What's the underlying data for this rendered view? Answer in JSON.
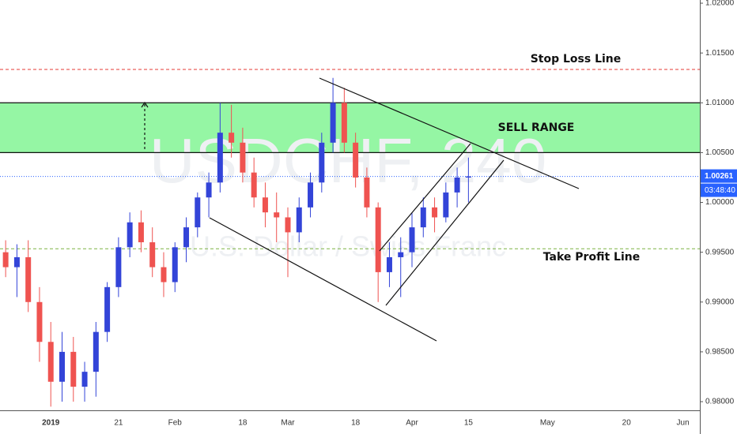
{
  "chart_data": {
    "type": "candlestick",
    "title": "USDCHF, 240",
    "subtitle": "U.S. Dollar / Swiss Franc",
    "categories": [
      null,
      null,
      null,
      null,
      "2019",
      null,
      null,
      null,
      null,
      null,
      "21",
      null,
      null,
      null,
      null,
      "Feb",
      null,
      null,
      null,
      null,
      null,
      "18",
      null,
      null,
      null,
      "Mar",
      null,
      null,
      null,
      null,
      null,
      "18",
      null,
      null,
      null,
      null,
      "Apr",
      null,
      null,
      null,
      null,
      "15",
      null,
      null,
      null,
      null,
      null,
      null,
      "May",
      null,
      null,
      null,
      null,
      null,
      null,
      "20",
      null,
      null,
      null,
      null,
      "Jun",
      null
    ],
    "open": [
      0.995,
      0.9935,
      0.9945,
      0.99,
      0.986,
      0.982,
      0.985,
      0.9815,
      0.983,
      0.987,
      0.9915,
      0.9955,
      0.998,
      0.996,
      0.9935,
      0.992,
      0.9955,
      0.9975,
      1.0005,
      1.002,
      1.007,
      1.006,
      1.003,
      1.0005,
      0.999,
      0.9985,
      0.997,
      0.9995,
      1.002,
      1.006,
      1.01,
      1.006,
      1.0025,
      0.9995,
      0.993,
      0.9945,
      0.995,
      0.9975,
      0.9995,
      0.9985,
      1.001,
      1.0025,
      null,
      null,
      null,
      null,
      null,
      null,
      null,
      null,
      null,
      null,
      null,
      null,
      null,
      null,
      null,
      null,
      null,
      null,
      null,
      null
    ],
    "high": [
      0.9962,
      0.9958,
      0.9962,
      0.9915,
      0.988,
      0.987,
      0.9865,
      0.984,
      0.988,
      0.992,
      0.9965,
      0.999,
      0.9992,
      0.9975,
      0.995,
      0.996,
      0.9985,
      1.001,
      1.003,
      1.01,
      1.0098,
      1.0075,
      1.0045,
      1.002,
      1.001,
      0.9995,
      1.0005,
      1.003,
      1.007,
      1.0125,
      1.0115,
      1.007,
      1.0035,
      1.0,
      0.996,
      0.9965,
      0.999,
      1.0005,
      1.0005,
      1.002,
      1.0035,
      1.0045,
      null,
      null,
      null,
      null,
      null,
      null,
      null,
      null,
      null,
      null,
      null,
      null,
      null,
      null,
      null,
      null,
      null,
      null,
      null,
      null
    ],
    "low": [
      0.9925,
      0.9905,
      0.989,
      0.984,
      0.9795,
      0.98,
      0.98,
      0.98,
      0.9805,
      0.986,
      0.9905,
      0.9945,
      0.995,
      0.9925,
      0.9905,
      0.991,
      0.994,
      0.9965,
      0.9985,
      1.001,
      1.0045,
      1.002,
      0.9995,
      0.9975,
      0.996,
      0.9925,
      0.996,
      0.9985,
      1.001,
      1.005,
      1.005,
      1.0015,
      0.9985,
      0.99,
      0.9915,
      0.9905,
      0.9935,
      0.9965,
      0.997,
      0.998,
      0.9995,
      1.0,
      null,
      null,
      null,
      null,
      null,
      null,
      null,
      null,
      null,
      null,
      null,
      null,
      null,
      null,
      null,
      null,
      null,
      null,
      null,
      null
    ],
    "close": [
      0.9935,
      0.9945,
      0.99,
      0.986,
      0.982,
      0.985,
      0.9815,
      0.983,
      0.987,
      0.9915,
      0.9955,
      0.998,
      0.996,
      0.9935,
      0.992,
      0.9955,
      0.9975,
      1.0005,
      1.002,
      1.007,
      1.006,
      1.003,
      1.0005,
      0.999,
      0.9985,
      0.997,
      0.9995,
      1.002,
      1.006,
      1.01,
      1.006,
      1.0025,
      0.9995,
      0.993,
      0.9945,
      0.995,
      0.9975,
      0.9995,
      0.9985,
      1.001,
      1.0025,
      1.00261,
      null,
      null,
      null,
      null,
      null,
      null,
      null,
      null,
      null,
      null,
      null,
      null,
      null,
      null,
      null,
      null,
      null,
      null,
      null,
      null
    ],
    "up_color": "#3344d8",
    "down_color": "#ef5350",
    "ylim": [
      0.97913,
      1.02032
    ],
    "yticks": [
      {
        "value": 0.98,
        "label": "0.98000"
      },
      {
        "value": 0.985,
        "label": "0.98500"
      },
      {
        "value": 0.99,
        "label": "0.99000"
      },
      {
        "value": 0.995,
        "label": "0.99500"
      },
      {
        "value": 1.0,
        "label": "1.00000"
      },
      {
        "value": 1.005,
        "label": "1.00500"
      },
      {
        "value": 1.01,
        "label": "1.01000"
      },
      {
        "value": 1.015,
        "label": "1.01500"
      },
      {
        "value": 1.02,
        "label": "1.02000"
      }
    ],
    "stop_loss": {
      "label": "Stop Loss Line",
      "value": 1.01335,
      "color": "#e53935"
    },
    "sell_range": {
      "label": "SELL RANGE",
      "low": 1.005,
      "high": 1.01,
      "color": "#8af59a"
    },
    "take_profit": {
      "label": "Take Profit Line",
      "value": 0.99535,
      "color": "#7cb342"
    },
    "last_price": 1.00261,
    "last_price_color": "#2962ff",
    "countdown": "03:48:40"
  }
}
